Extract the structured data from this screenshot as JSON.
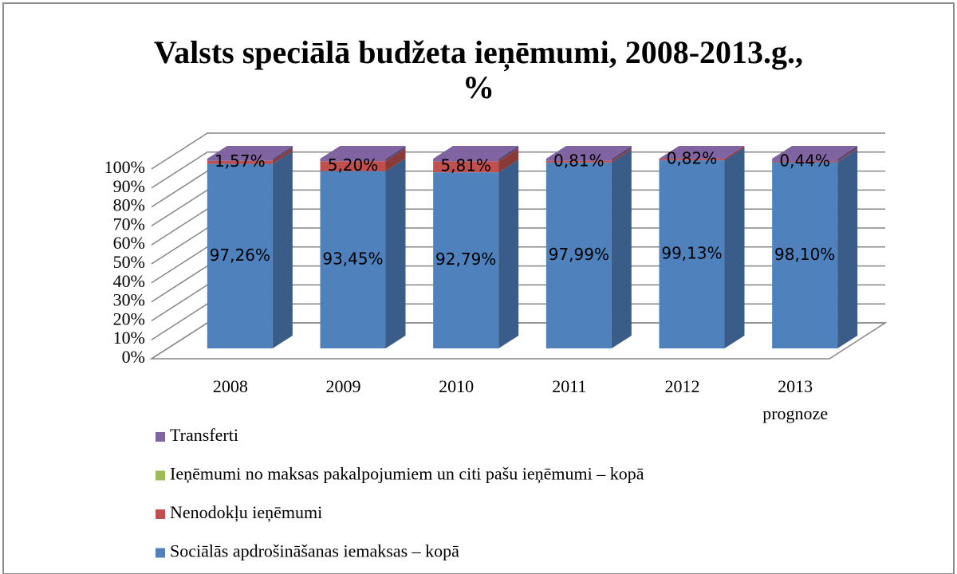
{
  "chart_data": {
    "type": "bar3d_stacked",
    "title": "Valsts speciālā budžeta ieņēmumi, 2008-2013.g., %",
    "categories": [
      "2008",
      "2009",
      "2010",
      "2011",
      "2012",
      "2013 prognoze"
    ],
    "series": [
      {
        "name": "Sociālās apdrošināšanas iemaksas – kopā",
        "color": "#4f81bd",
        "values": [
          97.26,
          93.45,
          92.79,
          97.99,
          99.13,
          98.1
        ],
        "value_labels": [
          "97,26%",
          "93,45%",
          "92,79%",
          "97,99%",
          "99,13%",
          "98,10%"
        ]
      },
      {
        "name": "Nenodokļu ieņēmumi",
        "color": "#c0504d",
        "values": [
          1.57,
          5.2,
          5.81,
          0.81,
          0.82,
          0.44
        ],
        "value_labels": [
          "1,57%",
          "5,20%",
          "5,81%",
          "0,81%",
          "0,82%",
          "0,44%"
        ]
      },
      {
        "name": "Ieņēmumi no maksas pakalpojumiem un citi pašu ieņēmumi – kopā",
        "color": "#9bbb59",
        "values": [
          0,
          0,
          0,
          0,
          0,
          0
        ]
      },
      {
        "name": "Transferti",
        "color": "#8064a2",
        "values": [
          1.17,
          1.35,
          1.4,
          1.2,
          0.05,
          1.46
        ]
      }
    ],
    "ylim": [
      0,
      100
    ],
    "yticks": [
      {
        "value": 0,
        "label": "0%"
      },
      {
        "value": 10,
        "label": "10%"
      },
      {
        "value": 20,
        "label": "20%"
      },
      {
        "value": 30,
        "label": "30%"
      },
      {
        "value": 40,
        "label": "40%"
      },
      {
        "value": 50,
        "label": "50%"
      },
      {
        "value": 60,
        "label": "60%"
      },
      {
        "value": 70,
        "label": "70%"
      },
      {
        "value": 80,
        "label": "80%"
      },
      {
        "value": 90,
        "label": "90%"
      },
      {
        "value": 100,
        "label": "100%"
      }
    ],
    "grid": true,
    "legend": "bottom"
  }
}
